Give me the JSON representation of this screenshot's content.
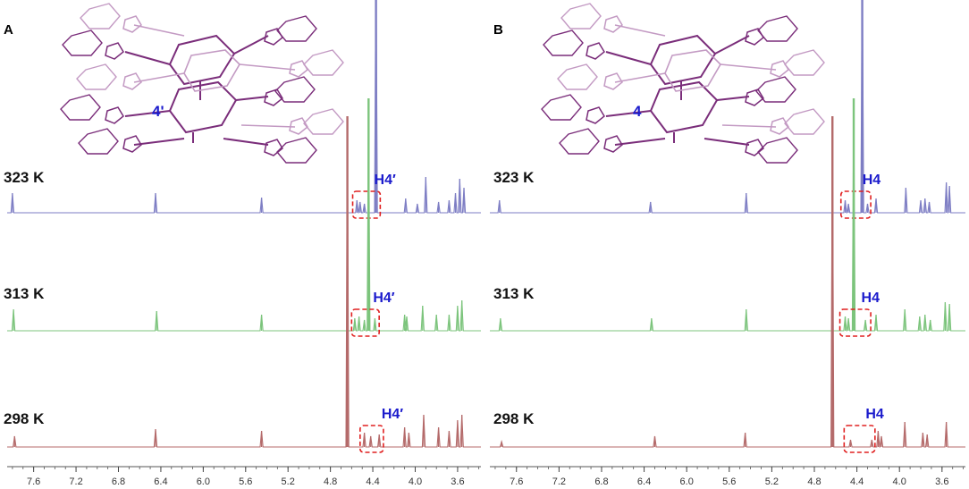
{
  "chart_data": [
    {
      "type": "line",
      "panel_label": "A",
      "compound_label": "4'",
      "xlabel": "",
      "ylabel": "",
      "x_ticks": [
        7.6,
        7.2,
        6.8,
        6.4,
        6.0,
        5.6,
        5.2,
        4.8,
        4.4,
        4.0,
        3.6
      ],
      "x_tick_labels": [
        "7.6",
        "7.2",
        "6.8",
        "6.4",
        "6.0",
        "5.6",
        "5.2",
        "4.8",
        "4.4",
        "4.0",
        "3.6"
      ],
      "xlim": [
        7.85,
        3.38
      ],
      "x_reversed": true,
      "grid": false,
      "series": [
        {
          "name": "323 K",
          "color": "#7e7ec4",
          "highlight_label": "H4′",
          "highlight_range": [
            4.59,
            4.33
          ],
          "peaks": [
            [
              7.8,
              22
            ],
            [
              6.45,
              22
            ],
            [
              5.45,
              17
            ],
            [
              4.55,
              14
            ],
            [
              4.52,
              12
            ],
            [
              4.48,
              10
            ],
            [
              4.37,
              280
            ],
            [
              4.09,
              16
            ],
            [
              3.98,
              10
            ],
            [
              3.9,
              40
            ],
            [
              3.78,
              12
            ],
            [
              3.68,
              14
            ],
            [
              3.62,
              22
            ],
            [
              3.58,
              38
            ],
            [
              3.54,
              28
            ]
          ]
        },
        {
          "name": "313 K",
          "color": "#7cc47c",
          "highlight_label": "H4′",
          "highlight_range": [
            4.6,
            4.34
          ],
          "peaks": [
            [
              7.79,
              24
            ],
            [
              6.44,
              22
            ],
            [
              5.45,
              18
            ],
            [
              4.57,
              14
            ],
            [
              4.53,
              16
            ],
            [
              4.48,
              12
            ],
            [
              4.44,
              260
            ],
            [
              4.38,
              14
            ],
            [
              4.1,
              18
            ],
            [
              4.08,
              16
            ],
            [
              3.93,
              28
            ],
            [
              3.8,
              18
            ],
            [
              3.68,
              18
            ],
            [
              3.6,
              28
            ],
            [
              3.56,
              34
            ]
          ]
        },
        {
          "name": "298 K",
          "color": "#b46a6a",
          "highlight_label": "H4′",
          "highlight_range": [
            4.52,
            4.3
          ],
          "peaks": [
            [
              7.78,
              12
            ],
            [
              6.45,
              20
            ],
            [
              5.45,
              18
            ],
            [
              4.64,
              370
            ],
            [
              4.48,
              16
            ],
            [
              4.42,
              12
            ],
            [
              4.34,
              14
            ],
            [
              4.1,
              22
            ],
            [
              4.06,
              16
            ],
            [
              3.92,
              36
            ],
            [
              3.78,
              22
            ],
            [
              3.68,
              18
            ],
            [
              3.6,
              30
            ],
            [
              3.56,
              36
            ]
          ]
        }
      ]
    },
    {
      "type": "line",
      "panel_label": "B",
      "compound_label": "4",
      "xlabel": "",
      "ylabel": "",
      "x_ticks": [
        7.6,
        7.2,
        6.8,
        6.4,
        6.0,
        5.6,
        5.2,
        4.8,
        4.4,
        4.0,
        3.6
      ],
      "x_tick_labels": [
        "7.6",
        "7.2",
        "6.8",
        "6.4",
        "6.0",
        "5.6",
        "5.2",
        "4.8",
        "4.4",
        "4.0",
        "3.6"
      ],
      "xlim": [
        7.85,
        3.38
      ],
      "x_reversed": true,
      "grid": false,
      "series": [
        {
          "name": "323 K",
          "color": "#7e7ec4",
          "highlight_label": "H4",
          "highlight_range": [
            4.55,
            4.27
          ],
          "peaks": [
            [
              7.76,
              14
            ],
            [
              6.34,
              12
            ],
            [
              5.44,
              22
            ],
            [
              4.51,
              14
            ],
            [
              4.48,
              10
            ],
            [
              4.35,
              280
            ],
            [
              4.3,
              10
            ],
            [
              4.22,
              16
            ],
            [
              3.94,
              28
            ],
            [
              3.8,
              14
            ],
            [
              3.76,
              16
            ],
            [
              3.72,
              12
            ],
            [
              3.56,
              34
            ],
            [
              3.53,
              30
            ]
          ]
        },
        {
          "name": "313 K",
          "color": "#7cc47c",
          "highlight_label": "H4",
          "highlight_range": [
            4.56,
            4.27
          ],
          "peaks": [
            [
              7.75,
              14
            ],
            [
              6.33,
              14
            ],
            [
              5.44,
              24
            ],
            [
              4.51,
              16
            ],
            [
              4.48,
              14
            ],
            [
              4.43,
              260
            ],
            [
              4.32,
              12
            ],
            [
              4.22,
              18
            ],
            [
              3.95,
              24
            ],
            [
              3.81,
              16
            ],
            [
              3.76,
              18
            ],
            [
              3.71,
              12
            ],
            [
              3.57,
              32
            ],
            [
              3.53,
              30
            ]
          ]
        },
        {
          "name": "298 K",
          "color": "#b46a6a",
          "highlight_label": "H4",
          "highlight_range": [
            4.52,
            4.23
          ],
          "peaks": [
            [
              7.74,
              6
            ],
            [
              6.3,
              12
            ],
            [
              5.45,
              16
            ],
            [
              4.63,
              370
            ],
            [
              4.46,
              8
            ],
            [
              4.26,
              8
            ],
            [
              4.2,
              18
            ],
            [
              4.17,
              12
            ],
            [
              3.95,
              28
            ],
            [
              3.78,
              16
            ],
            [
              3.74,
              14
            ],
            [
              3.56,
              28
            ]
          ]
        }
      ]
    }
  ]
}
